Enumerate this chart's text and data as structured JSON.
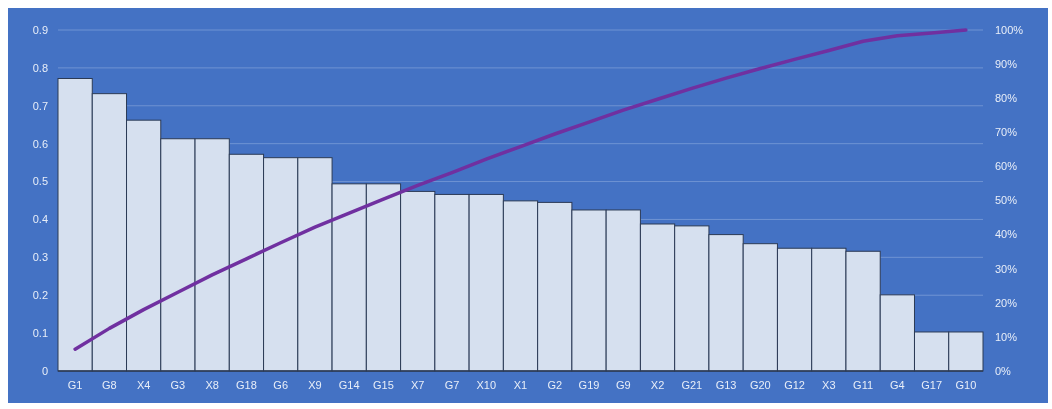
{
  "chart_data": {
    "type": "bar",
    "categories": [
      "G1",
      "G8",
      "X4",
      "G3",
      "X8",
      "G18",
      "G6",
      "X9",
      "G14",
      "G15",
      "X7",
      "G7",
      "X10",
      "X1",
      "G2",
      "G19",
      "G9",
      "X2",
      "G21",
      "G13",
      "G20",
      "G12",
      "X3",
      "G11",
      "G4",
      "G17",
      "G10"
    ],
    "series": [
      {
        "color": "#d6e0ef",
        "values": [
          0.772,
          0.732,
          0.662,
          0.613,
          0.613,
          0.572,
          0.563,
          0.563,
          0.494,
          0.494,
          0.474,
          0.466,
          0.466,
          0.449,
          0.445,
          0.425,
          0.425,
          0.388,
          0.383,
          0.36,
          0.336,
          0.324,
          0.324,
          0.316,
          0.201,
          0.103,
          0.103
        ]
      },
      {
        "type": "line",
        "axis": "y2",
        "color": "#7030a0",
        "values": [
          6.4,
          12.5,
          18.0,
          23.1,
          28.2,
          32.9,
          37.6,
          42.2,
          46.3,
          50.4,
          54.4,
          58.2,
          62.1,
          65.8,
          69.5,
          73.0,
          76.5,
          79.7,
          82.9,
          85.9,
          88.7,
          91.4,
          94.0,
          96.7,
          98.3,
          99.1,
          100
        ]
      }
    ],
    "ylim": [
      0,
      0.9
    ],
    "yticks": [
      0,
      0.1,
      0.2,
      0.3,
      0.4,
      0.5,
      0.6,
      0.7,
      0.8,
      0.9
    ],
    "y2lim": [
      0,
      100
    ],
    "y2ticks": [
      {
        "value": 0,
        "label": "0%"
      },
      {
        "value": 10,
        "label": "10%"
      },
      {
        "value": 20,
        "label": "20%"
      },
      {
        "value": 30,
        "label": "30%"
      },
      {
        "value": 40,
        "label": "40%"
      },
      {
        "value": 50,
        "label": "50%"
      },
      {
        "value": 60,
        "label": "60%"
      },
      {
        "value": 70,
        "label": "70%"
      },
      {
        "value": 80,
        "label": "80%"
      },
      {
        "value": 90,
        "label": "90%"
      },
      {
        "value": 100,
        "label": "100%"
      }
    ],
    "grid": "y"
  }
}
